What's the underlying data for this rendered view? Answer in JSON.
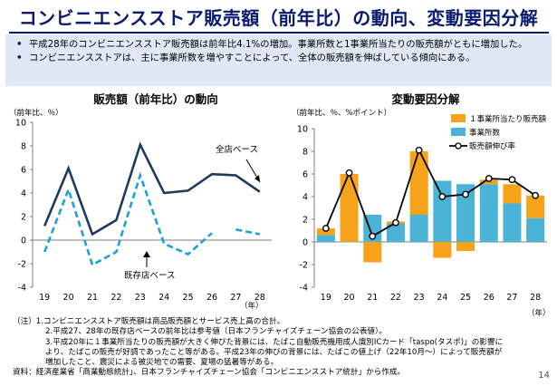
{
  "page": {
    "title": "コンビニエンスストア販売額（前年比）の動向、変動要因分解",
    "bullets": [
      "平成28年のコンビニエンスストア販売額は前年比4.1%の増加。事業所数と1事業所当たりの販売額がともに増加した。",
      "コンビニエンスストアは、主に事業所数を増やすことによって、全体の販売額を伸ばしている傾向にある。"
    ],
    "notes": [
      "（注）1.コンビニエンスストア販売額は商品販売額とサービス売上高の合計。",
      "2.平成27、28年の既存店ベースの前年比は参考値（日本フランチャイズチェーン協会の公表値）。",
      "3.平成20年に１事業所当たりの販売額が大きく伸びた背景には、たばこ自動販売機用成人識別ICカード「taspo(タスポ)」の影響に",
      "より、たばこの販売が好調であったこと等がある。平成23年の伸びの背景には、たばこの値上げ（22年10月～）によって販売額が",
      "増加したこと、震災による被災地での需要、夏場の猛暑等がある。",
      "資料：経済産業省「商業動態統計」、日本フランチャイズチェーン協会「コンビニエンスストア統計」から作成。"
    ],
    "page_number": "14"
  },
  "colors": {
    "navy": "#0a1a6e",
    "all_store_line": "#1f3a5f",
    "existing_store_line": "#1fa0d8",
    "per_store_bar": "#f7a21b",
    "store_count_bar": "#4bb3d6",
    "growth_line": "#000000"
  },
  "chart_data": [
    {
      "type": "line",
      "title": "販売額（前年比）の動向",
      "ylabel": "（前年比、％）",
      "xlabel": "（年）",
      "x": [
        "19",
        "20",
        "21",
        "22",
        "23",
        "24",
        "25",
        "26",
        "27",
        "28"
      ],
      "ylim": [
        -4,
        10
      ],
      "yticks": [
        -4,
        -2,
        0,
        2,
        4,
        6,
        8,
        10
      ],
      "grid": false,
      "series": [
        {
          "name": "全店ベース",
          "values": [
            1.2,
            6.1,
            0.5,
            1.7,
            8.1,
            4.0,
            4.2,
            5.6,
            5.5,
            4.1
          ]
        },
        {
          "name": "既存店ベース",
          "values": [
            -1.0,
            4.3,
            -2.1,
            -1.0,
            5.5,
            -0.3,
            -1.2,
            0.6,
            0.9,
            0.5
          ]
        }
      ],
      "annotations": [
        "全店ベース",
        "既存店ベース"
      ]
    },
    {
      "type": "bar",
      "title": "変動要因分解",
      "ylabel": "（前年比、％、%ポイント）",
      "xlabel": "（年）",
      "categories": [
        "19",
        "20",
        "21",
        "22",
        "23",
        "24",
        "25",
        "26",
        "27",
        "28"
      ],
      "ylim": [
        -4,
        10
      ],
      "yticks": [
        -4,
        -2,
        0,
        2,
        4,
        6,
        8,
        10
      ],
      "grid": false,
      "legend_position": "top-right",
      "stacked": true,
      "series": [
        {
          "name": "１事業所当たり販売額",
          "type": "bar",
          "values": [
            0.6,
            6.0,
            -1.8,
            0.2,
            5.6,
            -1.4,
            -0.8,
            0.4,
            1.7,
            2.0
          ]
        },
        {
          "name": "事業所数",
          "type": "bar",
          "values": [
            0.6,
            0.0,
            2.4,
            1.6,
            2.4,
            5.4,
            5.1,
            5.1,
            3.4,
            2.1
          ]
        },
        {
          "name": "販売額伸び率",
          "type": "line",
          "values": [
            1.2,
            6.1,
            0.5,
            1.7,
            8.1,
            4.0,
            4.2,
            5.6,
            5.5,
            4.1
          ]
        }
      ]
    }
  ]
}
